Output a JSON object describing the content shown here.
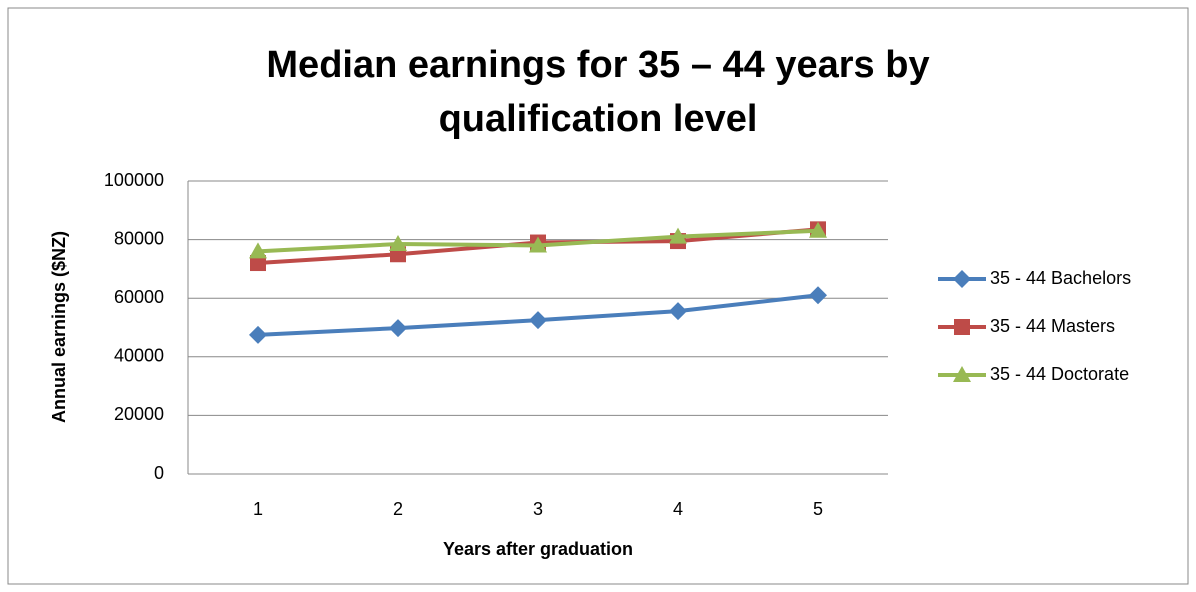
{
  "chart_data": {
    "type": "line",
    "title": "Median earnings for 35 – 44 years by qualification level",
    "x_label": "Years after graduation",
    "y_label": "Annual earnings ($NZ)",
    "categories": [
      "1",
      "2",
      "3",
      "4",
      "5"
    ],
    "series": [
      {
        "name": "35 - 44 Bachelors",
        "color": "#4a7ebb",
        "marker": "diamond",
        "values": [
          47500,
          49800,
          52500,
          55600,
          61000
        ]
      },
      {
        "name": "35 - 44 Masters",
        "color": "#be4b48",
        "marker": "square",
        "values": [
          72000,
          75000,
          79000,
          79500,
          83500
        ]
      },
      {
        "name": "35 - 44 Doctorate",
        "color": "#98b954",
        "marker": "triangle",
        "values": [
          76000,
          78500,
          78000,
          81000,
          83000
        ]
      }
    ],
    "ylim": [
      0,
      100000
    ],
    "yticks": [
      0,
      20000,
      40000,
      60000,
      80000,
      100000
    ],
    "grid": true,
    "legend": "right"
  }
}
